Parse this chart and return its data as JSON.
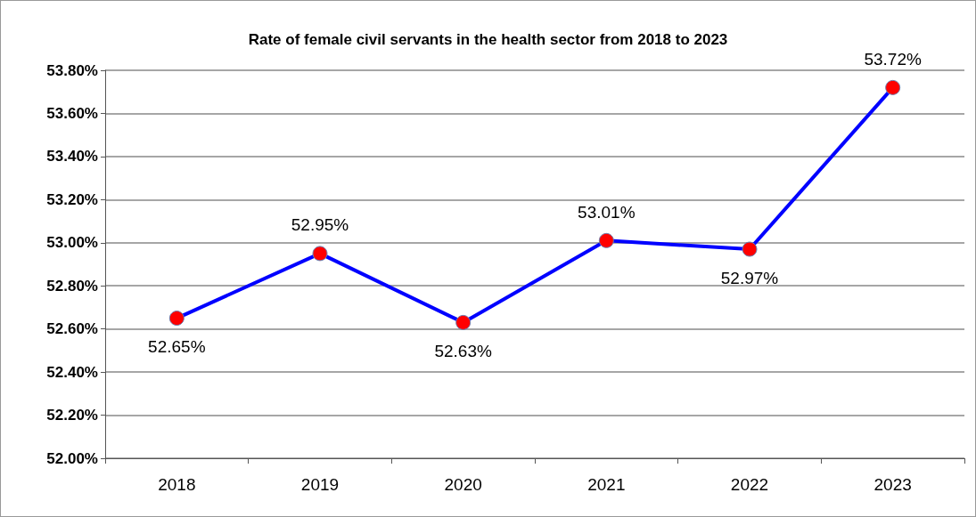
{
  "chart_data": {
    "type": "line",
    "title": "Rate of female civil servants in the health sector from 2018 to 2023",
    "categories": [
      "2018",
      "2019",
      "2020",
      "2021",
      "2022",
      "2023"
    ],
    "values": [
      52.65,
      52.95,
      52.63,
      53.01,
      52.97,
      53.72
    ],
    "value_labels": [
      "52.65%",
      "52.95%",
      "52.63%",
      "53.01%",
      "52.97%",
      "53.72%"
    ],
    "color": "#0000ff",
    "colors": [
      "#ff0000",
      "#ff0000",
      "#ff0000",
      "#ff0000",
      "#ff0000",
      "#ff0000"
    ],
    "marker": "circle",
    "line_style": "solid",
    "ylim": [
      52,
      53.8
    ],
    "yticks": [
      {
        "value": 52,
        "label": "52.00%"
      },
      {
        "value": 52.2,
        "label": "52.20%"
      },
      {
        "value": 52.4,
        "label": "52.40%"
      },
      {
        "value": 52.6,
        "label": "52.60%"
      },
      {
        "value": 52.8,
        "label": "52.80%"
      },
      {
        "value": 53,
        "label": "53.00%"
      },
      {
        "value": 53.2,
        "label": "53.20%"
      },
      {
        "value": 53.4,
        "label": "53.40%"
      },
      {
        "value": 53.6,
        "label": "53.60%"
      },
      {
        "value": 53.8,
        "label": "53.80%"
      }
    ],
    "grid": "y"
  }
}
